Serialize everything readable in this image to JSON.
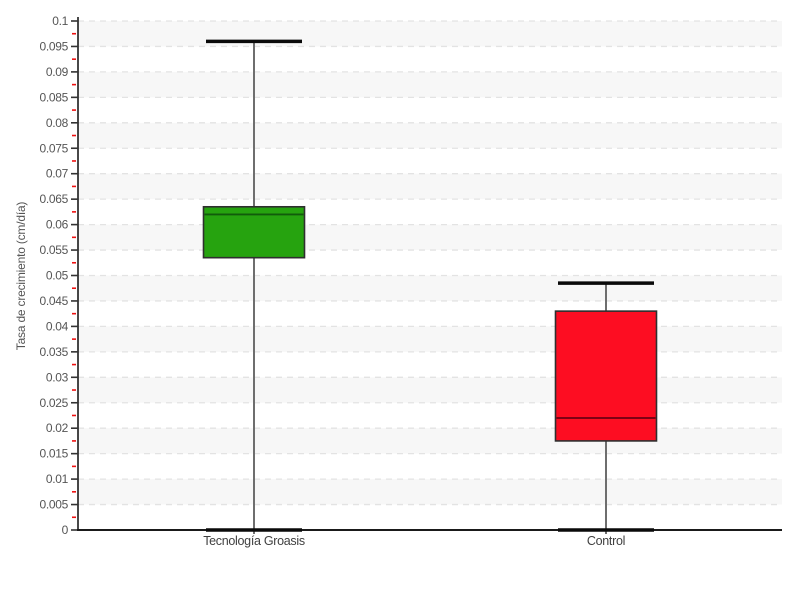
{
  "chart_data": {
    "type": "boxplot",
    "title": "",
    "xlabel": "",
    "ylabel": "Tasa de crecimiento (cm/día)",
    "ylim": [
      0,
      0.1
    ],
    "ytick_step": 0.005,
    "yticks": [
      0,
      0.005,
      0.01,
      0.015,
      0.02,
      0.025,
      0.03,
      0.035,
      0.04,
      0.045,
      0.05,
      0.055,
      0.06,
      0.065,
      0.07,
      0.075,
      0.08,
      0.085,
      0.09,
      0.095,
      0.1
    ],
    "categories": [
      "Tecnología Groasis",
      "Control"
    ],
    "series": [
      {
        "name": "Tecnología Groasis",
        "min": 0,
        "q1": 0.0535,
        "median": 0.062,
        "q3": 0.0635,
        "max": 0.096,
        "box_color": "#26a30f",
        "median_color": "#115c0b"
      },
      {
        "name": "Control",
        "min": 0,
        "q1": 0.0175,
        "median": 0.022,
        "q3": 0.043,
        "max": 0.0485,
        "box_color": "#fd0d22",
        "median_color": "#6b0012"
      }
    ],
    "grid": "dashed-horizontal",
    "legend": "none"
  },
  "style_colors": {
    "band_alt": "#f7f7f7",
    "band_base": "#ffffff",
    "gridline": "#e3e3e3",
    "axis": "#1a1a1a",
    "major_tick": "#333333",
    "minor_tick": "#ee1111",
    "whisker": "#6e6e6e",
    "cap": "#0a0a0a",
    "box_border": "#2f2f2f",
    "ytick_label": "#555555",
    "xtick_label": "#3f3f3f"
  }
}
